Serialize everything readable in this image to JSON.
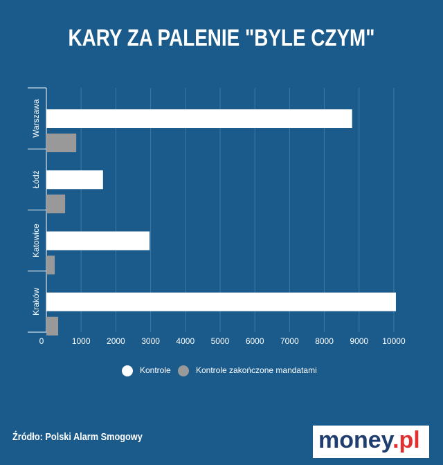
{
  "chart_data": {
    "type": "barh",
    "title": "KARY ZA PALENIE \"BYLE CZYM\"",
    "categories": [
      "Warszawa",
      "Łódź",
      "Katowice",
      "Kraków"
    ],
    "series": [
      {
        "name": "Kontrole",
        "color": "#ffffff",
        "values": [
          8800,
          1630,
          2970,
          10060
        ]
      },
      {
        "name": "Kontrole zakończone mandatami",
        "color": "#999999",
        "values": [
          860,
          540,
          240,
          340
        ]
      }
    ],
    "xlim": [
      0,
      10300
    ],
    "xticks": [
      0,
      1000,
      2000,
      3000,
      4000,
      5000,
      6000,
      7000,
      8000,
      9000,
      10000
    ],
    "grid": true
  },
  "source": "Źródło: Polski Alarm Smogowy",
  "logo": {
    "main": "money",
    "suffix": ".pl"
  }
}
